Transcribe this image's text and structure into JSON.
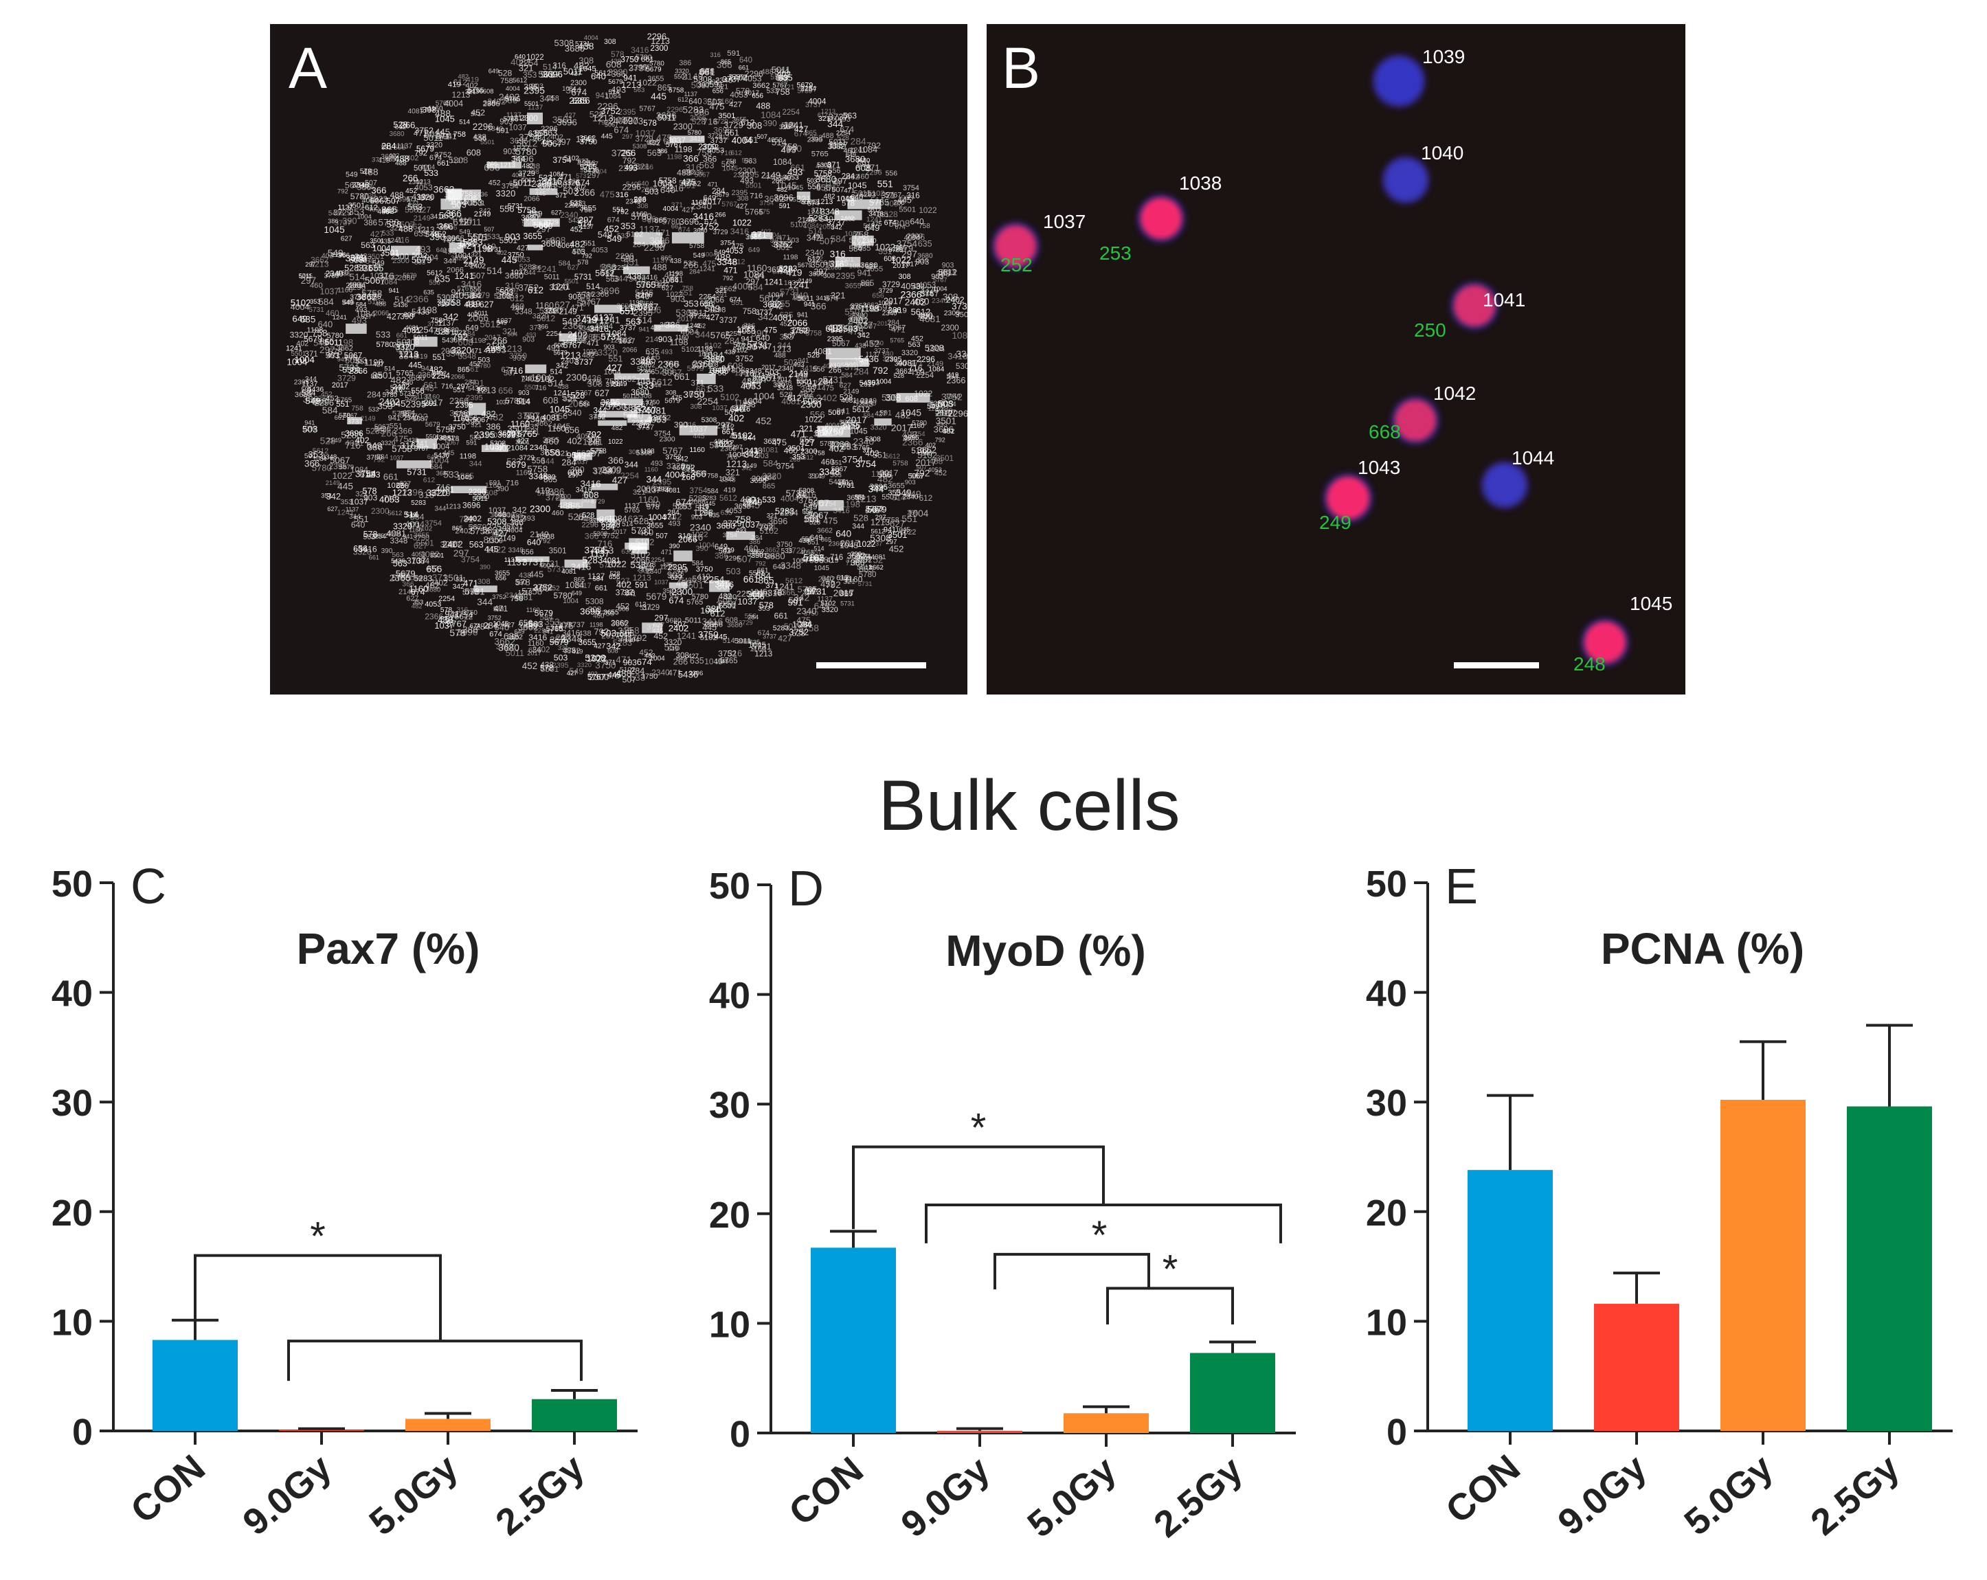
{
  "panel_a": {
    "letter": "A",
    "labels": [
      "5758",
      "5765",
      "5767",
      "5780",
      "3750",
      "3752",
      "3754",
      "4004",
      "4053",
      "4081",
      "1022",
      "1037",
      "1160",
      "1213",
      "1241",
      "2254",
      "2296",
      "2300",
      "2340",
      "2366",
      "2395",
      "2402",
      "3320",
      "3348",
      "3416",
      "3501",
      "3655",
      "3662",
      "3680",
      "3696",
      "3729",
      "3737",
      "344",
      "475",
      "482",
      "503",
      "551",
      "640",
      "716",
      "758",
      "792",
      "865",
      "903",
      "941",
      "1004",
      "1045",
      "1084",
      "1137",
      "1198",
      "2017",
      "2066",
      "2149",
      "5011",
      "5067",
      "5102",
      "5283",
      "5308",
      "5436",
      "5501",
      "5612",
      "5679",
      "5731",
      "266",
      "284",
      "297",
      "308",
      "316",
      "321",
      "342",
      "353",
      "366",
      "371",
      "386",
      "390",
      "402",
      "419",
      "427",
      "438",
      "445",
      "452",
      "460",
      "471",
      "488",
      "493",
      "507",
      "514",
      "528",
      "533",
      "549",
      "556",
      "563",
      "578",
      "584",
      "591",
      "608",
      "612",
      "627",
      "635",
      "649",
      "656",
      "661",
      "674"
    ]
  },
  "panel_b": {
    "letter": "B",
    "cells": [
      {
        "id": "1037",
        "green_label": "252",
        "color": "#e8306f"
      },
      {
        "id": "1038",
        "green_label": "253",
        "color": "#ff2a6e"
      },
      {
        "id": "1039",
        "green_label": "",
        "color": "#3438c8"
      },
      {
        "id": "1040",
        "green_label": "",
        "color": "#3a3ac4"
      },
      {
        "id": "1041",
        "green_label": "250",
        "color": "#e0306f"
      },
      {
        "id": "1042",
        "green_label": "668",
        "color": "#e0306f"
      },
      {
        "id": "1043",
        "green_label": "249",
        "color": "#ff2a6e"
      },
      {
        "id": "1044",
        "green_label": "",
        "color": "#3a3ac4"
      },
      {
        "id": "1045",
        "green_label": "248",
        "color": "#ff2a6e"
      }
    ]
  },
  "main_title": "Bulk cells",
  "significance_marker": "*",
  "colors": {
    "CON": "#009fdb",
    "9.0Gy": "#ff4030",
    "5.0Gy": "#ff8c2a",
    "2.5Gy": "#00874a"
  },
  "chart_data": [
    {
      "type": "bar",
      "panel": "C",
      "title": "Pax7 (%)",
      "categories": [
        "CON",
        "9.0Gy",
        "5.0Gy",
        "2.5Gy"
      ],
      "values": [
        8.3,
        0.1,
        1.1,
        2.9
      ],
      "errors": [
        1.8,
        0.1,
        0.5,
        0.8
      ],
      "ylim": [
        0,
        50
      ],
      "yticks": [
        0,
        10,
        20,
        30,
        40,
        50
      ],
      "brackets": [
        {
          "from": [
            0
          ],
          "to": [
            1,
            2,
            3
          ],
          "star": true
        }
      ]
    },
    {
      "type": "bar",
      "panel": "D",
      "title": "MyoD (%)",
      "categories": [
        "CON",
        "9.0Gy",
        "5.0Gy",
        "2.5Gy"
      ],
      "values": [
        16.9,
        0.2,
        1.8,
        7.3
      ],
      "errors": [
        1.5,
        0.2,
        0.6,
        1.0
      ],
      "ylim": [
        0,
        50
      ],
      "yticks": [
        0,
        10,
        20,
        30,
        40,
        50
      ],
      "brackets": [
        {
          "from": [
            0
          ],
          "to": [
            1,
            2,
            3
          ],
          "star": true
        },
        {
          "from": [
            1
          ],
          "to": [
            2
          ],
          "star": true
        },
        {
          "from": [
            2
          ],
          "to": [
            3
          ],
          "star": true
        }
      ]
    },
    {
      "type": "bar",
      "panel": "E",
      "title": "PCNA (%)",
      "categories": [
        "CON",
        "9.0Gy",
        "5.0Gy",
        "2.5Gy"
      ],
      "values": [
        23.8,
        11.6,
        30.2,
        29.6
      ],
      "errors": [
        6.8,
        2.8,
        5.3,
        7.4
      ],
      "ylim": [
        0,
        50
      ],
      "yticks": [
        0,
        10,
        20,
        30,
        40,
        50
      ],
      "brackets": []
    }
  ]
}
